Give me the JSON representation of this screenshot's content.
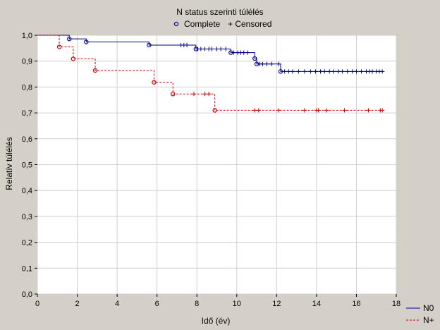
{
  "chart_data": {
    "type": "line",
    "title": "N status szerinti túlélés",
    "legend_markers": {
      "complete": "Complete",
      "censored": "+ Censored"
    },
    "xlabel": "Idő (év)",
    "ylabel": "Relatív túlélés",
    "xlim": [
      0,
      18
    ],
    "ylim": [
      0,
      1
    ],
    "x_ticks": [
      0,
      2,
      4,
      6,
      8,
      10,
      12,
      14,
      16,
      18
    ],
    "x_tick_labels": [
      "0",
      "2",
      "4",
      "6",
      "8",
      "10",
      "12",
      "14",
      "16",
      "18"
    ],
    "y_ticks": [
      0,
      0.1,
      0.2,
      0.3,
      0.4,
      0.5,
      0.6,
      0.7,
      0.8,
      0.9,
      1.0
    ],
    "y_tick_labels": [
      "0,0",
      "0,1",
      "0,2",
      "0,3",
      "0,4",
      "0,5",
      "0,6",
      "0,7",
      "0,8",
      "0,9",
      "1,0"
    ],
    "grid": true,
    "legend_position": "bottom-right",
    "series": [
      {
        "name": "N0",
        "color": "#00008b",
        "line_style": "solid",
        "steps": [
          [
            0,
            1.0
          ],
          [
            1.6,
            0.986
          ],
          [
            2.45,
            0.974
          ],
          [
            5.6,
            0.962
          ],
          [
            7.95,
            0.947
          ],
          [
            9.7,
            0.933
          ],
          [
            10.9,
            0.91
          ],
          [
            11.0,
            0.889
          ],
          [
            12.2,
            0.86
          ]
        ],
        "end_x": 17.3,
        "complete": [
          [
            1.6,
            0.986
          ],
          [
            2.45,
            0.974
          ],
          [
            5.6,
            0.962
          ],
          [
            7.95,
            0.947
          ],
          [
            9.7,
            0.933
          ],
          [
            10.9,
            0.91
          ],
          [
            11.0,
            0.889
          ],
          [
            12.2,
            0.86
          ]
        ],
        "censored": [
          [
            7.2,
            0.962
          ],
          [
            7.35,
            0.962
          ],
          [
            7.5,
            0.962
          ],
          [
            8.05,
            0.947
          ],
          [
            8.2,
            0.947
          ],
          [
            8.4,
            0.947
          ],
          [
            8.6,
            0.947
          ],
          [
            8.75,
            0.947
          ],
          [
            9.0,
            0.947
          ],
          [
            9.2,
            0.947
          ],
          [
            9.45,
            0.947
          ],
          [
            9.85,
            0.933
          ],
          [
            10.05,
            0.933
          ],
          [
            10.2,
            0.933
          ],
          [
            10.35,
            0.933
          ],
          [
            10.55,
            0.933
          ],
          [
            11.15,
            0.889
          ],
          [
            11.3,
            0.889
          ],
          [
            11.5,
            0.889
          ],
          [
            11.75,
            0.889
          ],
          [
            12.1,
            0.889
          ],
          [
            12.4,
            0.86
          ],
          [
            12.6,
            0.86
          ],
          [
            12.8,
            0.86
          ],
          [
            13.1,
            0.86
          ],
          [
            13.4,
            0.86
          ],
          [
            13.7,
            0.86
          ],
          [
            13.95,
            0.86
          ],
          [
            14.2,
            0.86
          ],
          [
            14.4,
            0.86
          ],
          [
            14.65,
            0.86
          ],
          [
            14.85,
            0.86
          ],
          [
            15.1,
            0.86
          ],
          [
            15.3,
            0.86
          ],
          [
            15.55,
            0.86
          ],
          [
            15.8,
            0.86
          ],
          [
            16.0,
            0.86
          ],
          [
            16.25,
            0.86
          ],
          [
            16.5,
            0.86
          ],
          [
            16.65,
            0.86
          ],
          [
            16.8,
            0.86
          ],
          [
            17.0,
            0.86
          ],
          [
            17.15,
            0.86
          ],
          [
            17.3,
            0.86
          ]
        ]
      },
      {
        "name": "N+",
        "color": "#cc0000",
        "line_style": "dashed",
        "steps": [
          [
            0,
            1.0
          ],
          [
            1.1,
            0.955
          ],
          [
            1.8,
            0.909
          ],
          [
            2.9,
            0.864
          ],
          [
            5.85,
            0.818
          ],
          [
            6.8,
            0.773
          ],
          [
            8.9,
            0.71
          ]
        ],
        "end_x": 17.3,
        "complete": [
          [
            1.1,
            0.955
          ],
          [
            1.8,
            0.909
          ],
          [
            2.9,
            0.864
          ],
          [
            5.85,
            0.818
          ],
          [
            6.8,
            0.773
          ],
          [
            8.9,
            0.71
          ]
        ],
        "censored": [
          [
            7.85,
            0.773
          ],
          [
            8.4,
            0.773
          ],
          [
            8.6,
            0.773
          ],
          [
            10.9,
            0.71
          ],
          [
            11.1,
            0.71
          ],
          [
            12.1,
            0.71
          ],
          [
            13.4,
            0.71
          ],
          [
            14.0,
            0.71
          ],
          [
            14.1,
            0.71
          ],
          [
            14.5,
            0.71
          ],
          [
            15.4,
            0.71
          ],
          [
            16.6,
            0.71
          ],
          [
            17.2,
            0.71
          ],
          [
            17.3,
            0.71
          ]
        ]
      }
    ]
  }
}
